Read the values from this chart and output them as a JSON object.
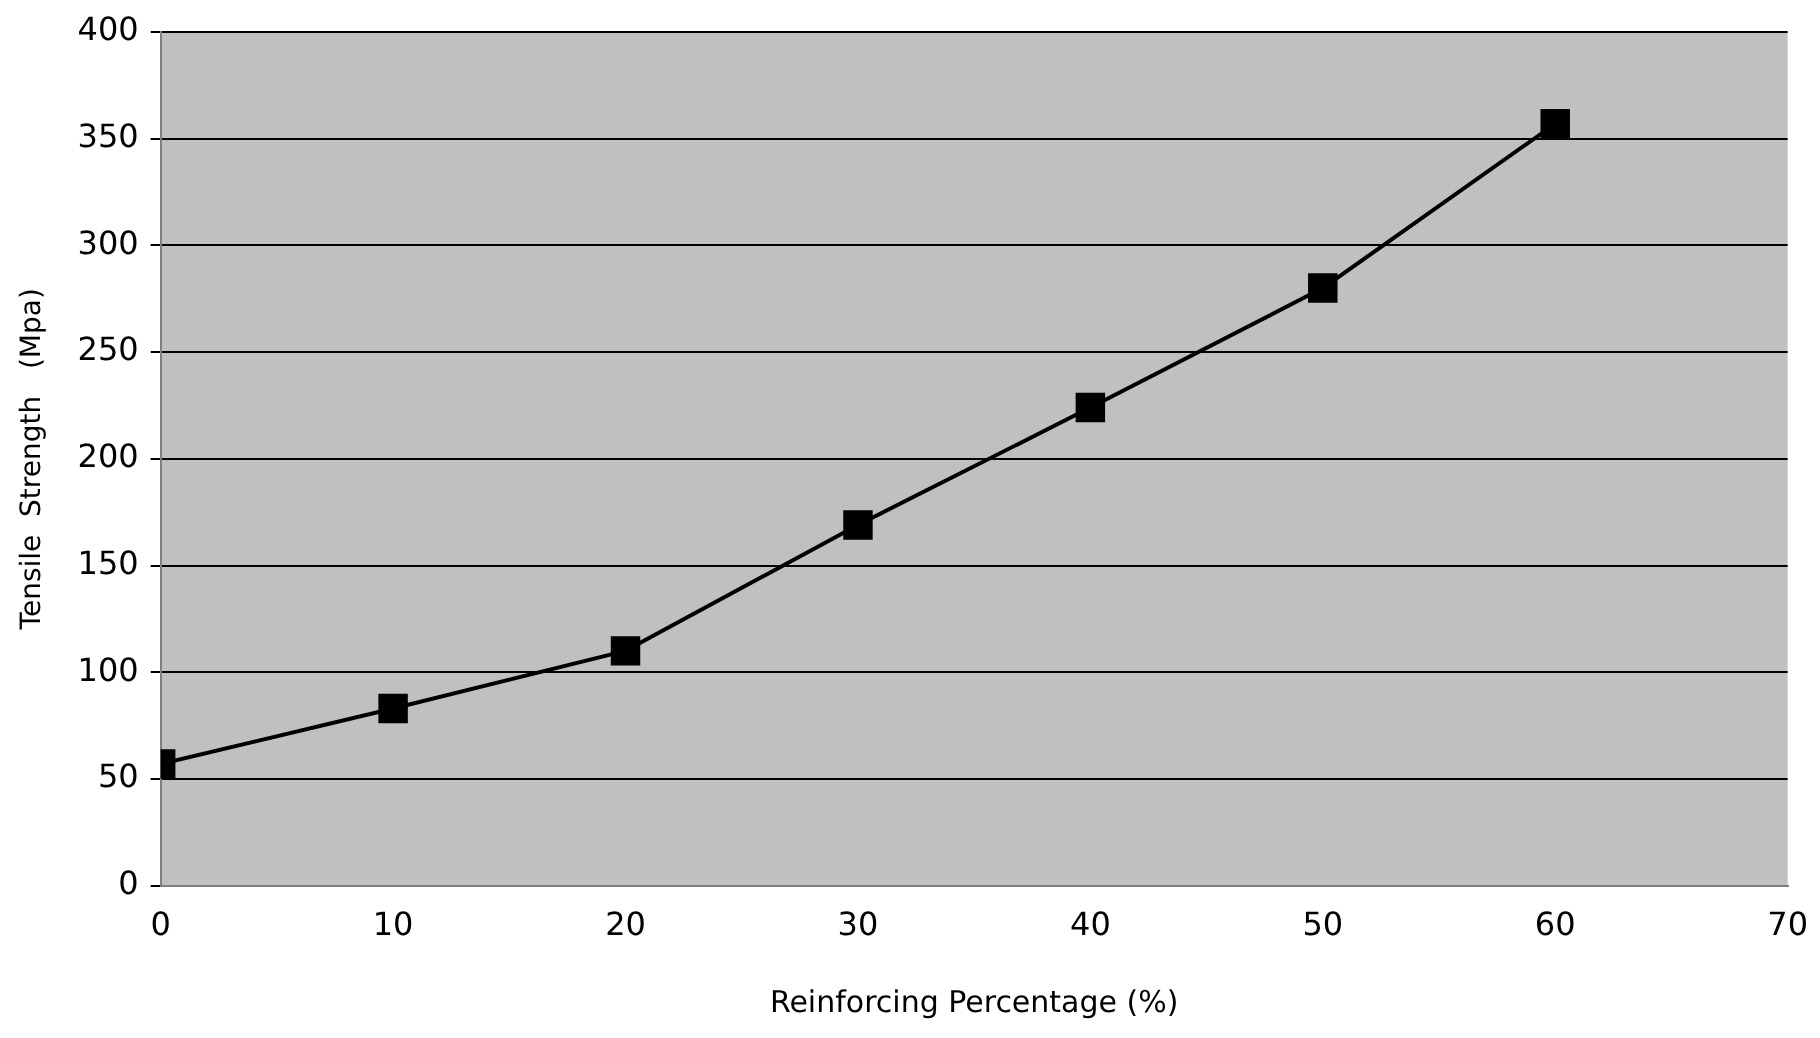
{
  "chart_data": {
    "type": "line",
    "xlabel": "Reinforcing Percentage (%)",
    "ylabel": "Tensile  Strength   (Mpa)",
    "x": [
      0,
      10,
      20,
      30,
      40,
      50,
      60
    ],
    "series": [
      {
        "color": "#000000",
        "values": [
          57,
          83,
          110,
          169,
          224,
          280,
          357
        ]
      }
    ],
    "xlim": [
      0,
      70
    ],
    "xticks": [
      0,
      10,
      20,
      30,
      40,
      50,
      60,
      70
    ],
    "ylim": [
      0,
      400
    ],
    "yticks": [
      0,
      50,
      100,
      150,
      200,
      250,
      300,
      350,
      400
    ],
    "grid": "y",
    "legend": false,
    "marker": "square",
    "line_style": "solid"
  }
}
